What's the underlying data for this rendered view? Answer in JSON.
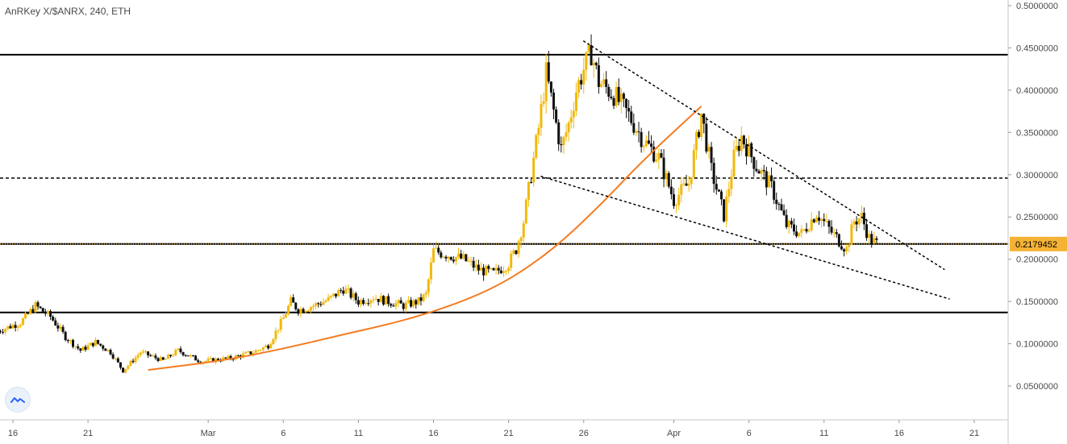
{
  "header": {
    "title": "AnRKey X/$ANRX, 240, ETH"
  },
  "logo": {
    "icon": "tradingview-logo-icon"
  },
  "colors": {
    "up": "#f0b90b",
    "down": "#111111",
    "curve": "#f47b20",
    "line": "#000000",
    "price_tag_bg": "#f5b335",
    "axis_text": "#4a4a4a"
  },
  "chart_data": {
    "type": "candlestick",
    "title": "AnRKey X/$ANRX, 240, ETH",
    "ylim": [
      0.02,
      0.52
    ],
    "y_ticks": [
      0.05,
      0.1,
      0.15,
      0.2,
      0.25,
      0.3,
      0.35,
      0.4,
      0.45,
      0.5
    ],
    "y_tick_labels": [
      "0.0500000",
      "0.1000000",
      "0.1500000",
      "0.2000000",
      "0.2500000",
      "0.3000000",
      "0.3500000",
      "0.4000000",
      "0.4500000",
      "0.5000000"
    ],
    "x_domain": [
      "Feb 15",
      "Apr 23"
    ],
    "x_ticks": [
      {
        "label": "16",
        "date": "Feb 16"
      },
      {
        "label": "21",
        "date": "Feb 21"
      },
      {
        "label": "Mar",
        "date": "Mar 1"
      },
      {
        "label": "6",
        "date": "Mar 6"
      },
      {
        "label": "11",
        "date": "Mar 11"
      },
      {
        "label": "16",
        "date": "Mar 16"
      },
      {
        "label": "21",
        "date": "Mar 21"
      },
      {
        "label": "26",
        "date": "Mar 26"
      },
      {
        "label": "Apr",
        "date": "Apr 1"
      },
      {
        "label": "6",
        "date": "Apr 6"
      },
      {
        "label": "11",
        "date": "Apr 11"
      },
      {
        "label": "16",
        "date": "Apr 16"
      },
      {
        "label": "21",
        "date": "Apr 21"
      }
    ],
    "last_price": {
      "value": 0.2179452,
      "label": "0.2179452"
    },
    "horizontal_levels": [
      {
        "price": 0.442,
        "style": "solid"
      },
      {
        "price": 0.296,
        "style": "dashed"
      },
      {
        "price": 0.218,
        "style": "solid"
      },
      {
        "price": 0.137,
        "style": "solid"
      }
    ],
    "trendlines": [
      {
        "name": "upper-wedge",
        "style": "dotted",
        "points": [
          [
            "Mar 26 00:00",
            0.458
          ],
          [
            "Apr 19 00:00",
            0.188
          ]
        ]
      },
      {
        "name": "lower-wedge",
        "style": "dotted",
        "points": [
          [
            "Mar 23 04:00",
            0.298
          ],
          [
            "Apr 19 08:00",
            0.153
          ]
        ]
      }
    ],
    "curve": {
      "name": "parabolic-support",
      "points": [
        [
          "Feb 25 00:00",
          0.069
        ],
        [
          "Mar 2 00:00",
          0.08
        ],
        [
          "Mar 6 00:00",
          0.094
        ],
        [
          "Mar 10 00:00",
          0.111
        ],
        [
          "Mar 14 00:00",
          0.127
        ],
        [
          "Mar 18 00:00",
          0.15
        ],
        [
          "Mar 21 00:00",
          0.175
        ],
        [
          "Mar 24 00:00",
          0.212
        ],
        [
          "Mar 27 00:00",
          0.262
        ],
        [
          "Mar 30 00:00",
          0.318
        ],
        [
          "Apr 2 20:00",
          0.381
        ]
      ]
    },
    "candle_anchors": [
      [
        "Feb 15 00:00",
        0.115
      ],
      [
        "Feb 16 12:00",
        0.125
      ],
      [
        "Feb 17 12:00",
        0.145
      ],
      [
        "Feb 18 12:00",
        0.132
      ],
      [
        "Feb 19 12:00",
        0.108
      ],
      [
        "Feb 20 12:00",
        0.092
      ],
      [
        "Feb 21 12:00",
        0.102
      ],
      [
        "Feb 22 12:00",
        0.09
      ],
      [
        "Feb 23 08:00",
        0.068
      ],
      [
        "Feb 24 12:00",
        0.09
      ],
      [
        "Feb 26 00:00",
        0.08
      ],
      [
        "Feb 27 00:00",
        0.092
      ],
      [
        "Feb 28 12:00",
        0.079
      ],
      [
        "Mar 2 12:00",
        0.083
      ],
      [
        "Mar 4 00:00",
        0.09
      ],
      [
        "Mar 5 00:00",
        0.098
      ],
      [
        "Mar 6 00:00",
        0.13
      ],
      [
        "Mar 6 12:00",
        0.15
      ],
      [
        "Mar 7 00:00",
        0.14
      ],
      [
        "Mar 8 00:00",
        0.145
      ],
      [
        "Mar 9 00:00",
        0.152
      ],
      [
        "Mar 10 00:00",
        0.165
      ],
      [
        "Mar 11 00:00",
        0.15
      ],
      [
        "Mar 12 00:00",
        0.155
      ],
      [
        "Mar 13 00:00",
        0.15
      ],
      [
        "Mar 14 00:00",
        0.145
      ],
      [
        "Mar 15 00:00",
        0.15
      ],
      [
        "Mar 15 12:00",
        0.158
      ],
      [
        "Mar 16 00:00",
        0.21
      ],
      [
        "Mar 17 00:00",
        0.205
      ],
      [
        "Mar 18 00:00",
        0.2
      ],
      [
        "Mar 19 00:00",
        0.188
      ],
      [
        "Mar 20 00:00",
        0.183
      ],
      [
        "Mar 21 00:00",
        0.195
      ],
      [
        "Mar 21 12:00",
        0.212
      ],
      [
        "Mar 22 00:00",
        0.245
      ],
      [
        "Mar 22 12:00",
        0.3
      ],
      [
        "Mar 23 00:00",
        0.355
      ],
      [
        "Mar 23 12:00",
        0.42
      ],
      [
        "Mar 24 00:00",
        0.375
      ],
      [
        "Mar 24 12:00",
        0.33
      ],
      [
        "Mar 25 00:00",
        0.36
      ],
      [
        "Mar 25 12:00",
        0.4
      ],
      [
        "Mar 26 00:00",
        0.425
      ],
      [
        "Mar 26 12:00",
        0.445
      ],
      [
        "Mar 27 00:00",
        0.41
      ],
      [
        "Mar 28 00:00",
        0.395
      ],
      [
        "Mar 29 00:00",
        0.37
      ],
      [
        "Mar 30 00:00",
        0.34
      ],
      [
        "Mar 31 00:00",
        0.32
      ],
      [
        "Apr 1 00:00",
        0.27
      ],
      [
        "Apr 2 00:00",
        0.29
      ],
      [
        "Apr 2 20:00",
        0.372
      ],
      [
        "Apr 3 12:00",
        0.305
      ],
      [
        "Apr 4 08:00",
        0.252
      ],
      [
        "Apr 5 00:00",
        0.32
      ],
      [
        "Apr 5 12:00",
        0.345
      ],
      [
        "Apr 6 12:00",
        0.31
      ],
      [
        "Apr 7 12:00",
        0.285
      ],
      [
        "Apr 8 12:00",
        0.24
      ],
      [
        "Apr 9 12:00",
        0.23
      ],
      [
        "Apr 10 12:00",
        0.255
      ],
      [
        "Apr 11 12:00",
        0.232
      ],
      [
        "Apr 12 12:00",
        0.212
      ],
      [
        "Apr 13 00:00",
        0.245
      ],
      [
        "Apr 13 12:00",
        0.25
      ],
      [
        "Apr 14 00:00",
        0.225
      ],
      [
        "Apr 14 12:00",
        0.218
      ]
    ]
  }
}
